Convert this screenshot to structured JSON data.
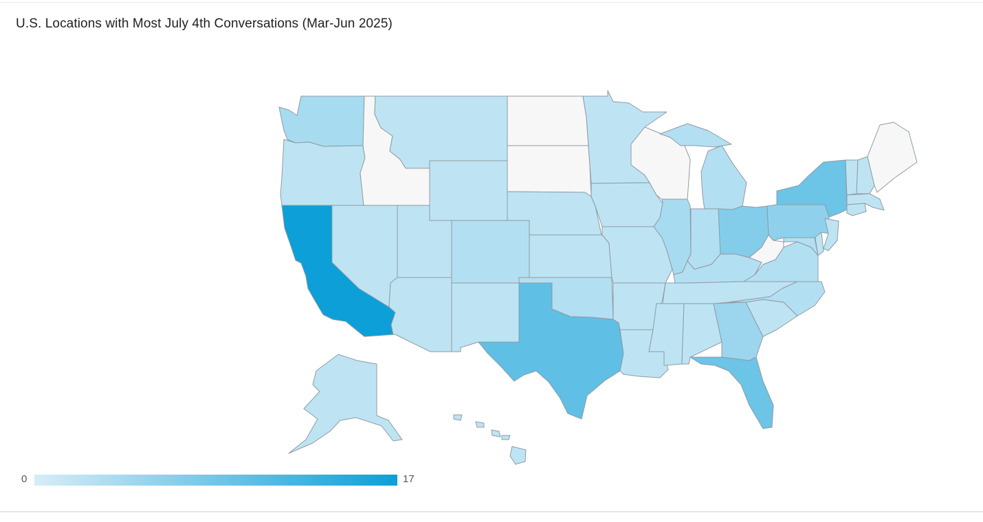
{
  "title": "U.S. Locations with Most July 4th Conversations (Mar-Jun 2025)",
  "legend": {
    "min": "0",
    "max": "17",
    "color_min": "#d6edf7",
    "color_max": "#0d9fd8",
    "color_none": "#f7f7f7"
  },
  "map_data": {
    "type": "choropleth",
    "region": "US states",
    "scale": [
      0,
      17
    ],
    "values": {
      "CA": 17,
      "TX": 10,
      "FL": 9,
      "NY": 9,
      "OH": 7,
      "PA": 6,
      "GA": 5,
      "WA": 4,
      "IL": 4,
      "MI": 3,
      "CO": 3,
      "OK": 3,
      "NC": 3,
      "VA": 3,
      "KY": 3,
      "IN": 3,
      "MD": 3,
      "OR": 2,
      "NV": 2,
      "UT": 2,
      "AZ": 2,
      "NM": 2,
      "MT": 2,
      "WY": 2,
      "NE": 2,
      "KS": 2,
      "MN": 2,
      "IA": 2,
      "MO": 2,
      "AR": 2,
      "LA": 2,
      "MS": 2,
      "AL": 2,
      "TN": 2,
      "SC": 2,
      "NJ": 2,
      "MA": 2,
      "CT": 2,
      "VT": 2,
      "NH": 2,
      "DE": 2,
      "AK": 2,
      "HI": 2,
      "ID": null,
      "ND": null,
      "SD": null,
      "WI": null,
      "WV": null,
      "ME": null
    }
  }
}
